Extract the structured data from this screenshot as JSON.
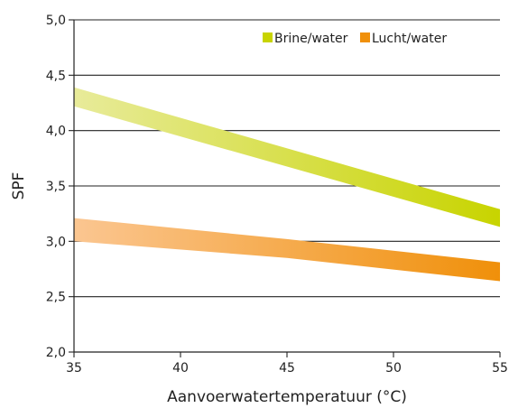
{
  "chart_data": {
    "type": "area",
    "xlabel": "Aanvoerwatertemperatuur (°C)",
    "ylabel": "SPF",
    "xlim": [
      35,
      55
    ],
    "ylim": [
      2.0,
      5.0
    ],
    "x_ticks": [
      35,
      40,
      45,
      50,
      55
    ],
    "x_tick_labels": [
      "35",
      "40",
      "45",
      "50",
      "55"
    ],
    "y_ticks": [
      2.0,
      2.5,
      3.0,
      3.5,
      4.0,
      4.5,
      5.0
    ],
    "y_tick_labels": [
      "2,0",
      "2,5",
      "3,0",
      "3,5",
      "4,0",
      "4,5",
      "5,0"
    ],
    "grid": "horizontal",
    "legend_position": "top-right",
    "series": [
      {
        "name": "Brine/water",
        "color": "#c8d400",
        "gradient_start_color": "#e8eb9a",
        "x": [
          35,
          55
        ],
        "lower": [
          4.22,
          3.13
        ],
        "upper": [
          4.39,
          3.29
        ]
      },
      {
        "name": "Lucht/water",
        "color": "#f0900a",
        "gradient_start_color": "#fbc691",
        "x": [
          35,
          45,
          55
        ],
        "lower": [
          3.0,
          2.85,
          2.64
        ],
        "upper": [
          3.21,
          3.02,
          2.81
        ]
      }
    ]
  }
}
